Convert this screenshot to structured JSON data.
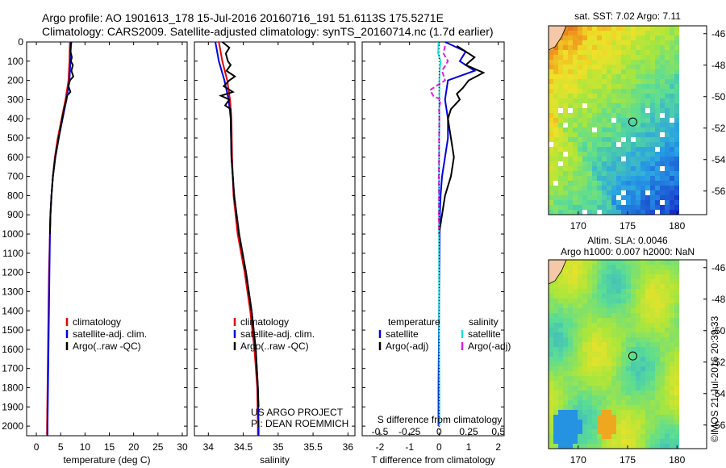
{
  "header": {
    "line1": "Argo profile: AO 1901613_178 15-Jul-2016 20160716_191 51.6113S 175.5271E",
    "line2": "Climatology: CARS2009. Satellite-adjusted climatology: synTS_20160714.nc (1.7d earlier)"
  },
  "colors": {
    "climatology": "#e60000",
    "satellite": "#0000e6",
    "argo": "#000000",
    "salinity_satellite": "#22dddd",
    "salinity_argo": "#dd22dd"
  },
  "chart_data": [
    {
      "id": "temperature",
      "type": "line",
      "xlabel": "temperature (deg C)",
      "xlim": [
        -2,
        31
      ],
      "xticks": [
        0,
        5,
        10,
        15,
        20,
        25,
        30
      ],
      "xtick_labels": [
        "0",
        "5",
        "10",
        "15",
        "20",
        "25",
        "30"
      ],
      "ylim": [
        2050,
        0
      ],
      "yticks": [
        0,
        100,
        200,
        300,
        400,
        500,
        600,
        700,
        800,
        900,
        1000,
        1100,
        1200,
        1300,
        1400,
        1500,
        1600,
        1700,
        1800,
        1900,
        2000
      ],
      "ytick_labels": [
        "0",
        "100",
        "200",
        "300",
        "400",
        "500",
        "600",
        "700",
        "800",
        "900",
        "1000",
        "1100",
        "1200",
        "1300",
        "1400",
        "1500",
        "1600",
        "1700",
        "1800",
        "1900",
        "2000"
      ],
      "legend": [
        "climatology",
        "satellite-adj. clim.",
        "Argo(..raw -QC)"
      ],
      "series": [
        {
          "name": "climatology",
          "color": "#e60000",
          "depth": [
            0,
            100,
            200,
            300,
            400,
            500,
            600,
            700,
            800,
            900,
            1000,
            1200,
            1400,
            1600,
            1800,
            2000,
            2050
          ],
          "values": [
            6.9,
            6.8,
            6.6,
            6.0,
            5.2,
            4.4,
            3.8,
            3.4,
            3.1,
            2.9,
            2.8,
            2.6,
            2.5,
            2.4,
            2.3,
            2.2,
            2.2
          ]
        },
        {
          "name": "satellite-adj. clim.",
          "color": "#0000e6",
          "depth": [
            0,
            100,
            200,
            300,
            400,
            500,
            600,
            700,
            800,
            900,
            1000,
            1200,
            1400,
            1600,
            1800,
            2000,
            2050
          ],
          "values": [
            7.1,
            7.0,
            6.8,
            6.2,
            5.4,
            4.6,
            3.9,
            3.4,
            3.1,
            2.9,
            2.8,
            2.7,
            2.6,
            2.5,
            2.4,
            2.3,
            2.3
          ]
        },
        {
          "name": "Argo(..raw -QC)",
          "color": "#000000",
          "depth": [
            0,
            20,
            50,
            80,
            100,
            120,
            150,
            180,
            200,
            230,
            260,
            280,
            300,
            350,
            400,
            500,
            600,
            700,
            800,
            900,
            1000
          ],
          "values": [
            7.2,
            7.1,
            7.0,
            7.3,
            7.1,
            7.5,
            7.2,
            7.6,
            6.9,
            6.6,
            7.0,
            6.3,
            6.2,
            5.7,
            5.3,
            4.6,
            3.9,
            3.4,
            3.1,
            2.9,
            2.8
          ]
        }
      ]
    },
    {
      "id": "salinity",
      "type": "line",
      "xlabel": "salinity",
      "xlim": [
        33.8,
        36.1
      ],
      "xticks": [
        34,
        34.5,
        35,
        35.5,
        36
      ],
      "xtick_labels": [
        "34",
        "34.5",
        "35",
        "35.5",
        "36"
      ],
      "ylim": [
        2050,
        0
      ],
      "legend": [
        "climatology",
        "satellite-adj. clim.",
        "Argo(..raw -QC)"
      ],
      "annotations": [
        "US ARGO PROJECT",
        "PI: DEAN ROEMMICH"
      ],
      "series": [
        {
          "name": "climatology",
          "color": "#e60000",
          "depth": [
            0,
            100,
            200,
            300,
            400,
            600,
            800,
            1000,
            1200,
            1400,
            1600,
            1800,
            2000,
            2050
          ],
          "values": [
            34.15,
            34.2,
            34.27,
            34.31,
            34.33,
            34.34,
            34.36,
            34.42,
            34.52,
            34.6,
            34.66,
            34.7,
            34.71,
            34.71
          ]
        },
        {
          "name": "satellite-adj. clim.",
          "color": "#0000e6",
          "depth": [
            0,
            100,
            200,
            300,
            400,
            600,
            800,
            1000,
            1200,
            1400,
            1600,
            1800,
            2000,
            2050
          ],
          "values": [
            34.1,
            34.15,
            34.23,
            34.29,
            34.32,
            34.33,
            34.37,
            34.44,
            34.54,
            34.62,
            34.68,
            34.71,
            34.72,
            34.72
          ]
        },
        {
          "name": "Argo(..raw -QC)",
          "color": "#000000",
          "depth": [
            0,
            30,
            60,
            100,
            120,
            150,
            180,
            200,
            230,
            260,
            280,
            300,
            330,
            350,
            400,
            600,
            800,
            1000,
            1200,
            1400,
            1600,
            1800,
            1900
          ],
          "values": [
            34.2,
            34.3,
            34.25,
            34.28,
            34.32,
            34.26,
            34.38,
            34.3,
            34.22,
            34.35,
            34.18,
            34.3,
            34.24,
            34.32,
            34.32,
            34.33,
            34.37,
            34.44,
            34.54,
            34.62,
            34.68,
            34.71,
            34.72
          ]
        }
      ]
    },
    {
      "id": "differences",
      "type": "line",
      "xlabel": "T difference from climatology",
      "xlim": [
        -2.6,
        2.2
      ],
      "xticks": [
        -2,
        -1,
        0,
        1,
        2
      ],
      "xtick_labels": [
        "-2",
        "-1",
        "0",
        "1",
        "2"
      ],
      "x2label": "S difference from climatology",
      "x2ticks": [
        -0.5,
        -0.25,
        0,
        0.25,
        0.5
      ],
      "x2tick_labels": [
        "-0.5",
        "-0.25",
        "0",
        "0.25",
        "0.5"
      ],
      "ylim": [
        2050,
        0
      ],
      "legend": {
        "temperature_title": "temperature",
        "salinity_title": "salinity",
        "satellite": "satellite",
        "argo": "Argo(-adj)"
      },
      "series": [
        {
          "name": "temperature satellite",
          "color": "#0000e6",
          "depth": [
            0,
            50,
            100,
            150,
            200,
            300,
            400,
            500,
            600,
            700,
            800,
            900,
            1000,
            1400,
            1800,
            2000
          ],
          "values": [
            0.2,
            0.9,
            0.7,
            1.2,
            0.3,
            0.2,
            0.3,
            0.3,
            0.2,
            0.1,
            0.05,
            0.03,
            0.02,
            0.0,
            -0.02,
            -0.02
          ]
        },
        {
          "name": "temperature Argo(-adj)",
          "color": "#000000",
          "depth": [
            20,
            80,
            120,
            160,
            200,
            240,
            270,
            300,
            350,
            400,
            500,
            600,
            700,
            800,
            900,
            1000
          ],
          "values": [
            0.6,
            1.2,
            0.9,
            1.5,
            1.0,
            0.8,
            0.6,
            0.7,
            0.4,
            0.3,
            0.4,
            0.5,
            0.4,
            0.2,
            0.1,
            0.0
          ]
        },
        {
          "name": "salinity satellite",
          "color": "#22dddd",
          "depth": [
            0,
            60,
            100,
            150,
            200,
            300,
            400,
            600,
            800,
            1000,
            1400,
            1800,
            2000
          ],
          "values": [
            -0.02,
            -0.03,
            0.05,
            0.02,
            0.01,
            0.01,
            0.01,
            0.0,
            0.0,
            0.0,
            0.0,
            0.01,
            0.01
          ]
        },
        {
          "name": "salinity Argo(-adj)",
          "color": "#dd22dd",
          "depth": [
            20,
            60,
            100,
            150,
            200,
            250,
            280,
            300,
            350,
            400,
            500,
            600,
            700,
            800,
            900,
            1000
          ],
          "values": [
            0.2,
            0.15,
            0.3,
            0.1,
            0.2,
            -0.3,
            -0.2,
            0.05,
            0.0,
            0.01,
            0.0,
            0.0,
            -0.01,
            0.0,
            -0.01,
            0.0
          ]
        }
      ]
    },
    {
      "id": "sst_map",
      "type": "heatmap",
      "title": "sat. SST: 7.02 Argo: 7.11",
      "xlim": [
        167,
        183
      ],
      "xticks": [
        170,
        175,
        180
      ],
      "xtick_labels": [
        "170",
        "175",
        "180"
      ],
      "ylim": [
        -57.5,
        -45.5
      ],
      "yticks": [
        -46,
        -48,
        -50,
        -52,
        -54,
        -56
      ],
      "ytick_labels": [
        "-46",
        "-48",
        "-50",
        "-52",
        "-54",
        "-56"
      ],
      "marker": {
        "lon": 175.5271,
        "lat": -51.6113
      }
    },
    {
      "id": "sla_map",
      "type": "heatmap",
      "title": [
        "Altim. SLA: 0.0046",
        "Argo h1000: 0.007 h2000: NaN"
      ],
      "xlim": [
        167,
        183
      ],
      "xticks": [
        170,
        175,
        180
      ],
      "xtick_labels": [
        "170",
        "175",
        "180"
      ],
      "ylim": [
        -57.5,
        -45.5
      ],
      "yticks": [
        -46,
        -48,
        -50,
        -52,
        -54,
        -56
      ],
      "ytick_labels": [
        "-46",
        "-48",
        "-50",
        "-52",
        "-54",
        "-56"
      ],
      "marker": {
        "lon": 175.5271,
        "lat": -51.6113
      }
    }
  ],
  "footer": {
    "credit": "©IMOS 21-Jul-2016 20:39:33"
  }
}
